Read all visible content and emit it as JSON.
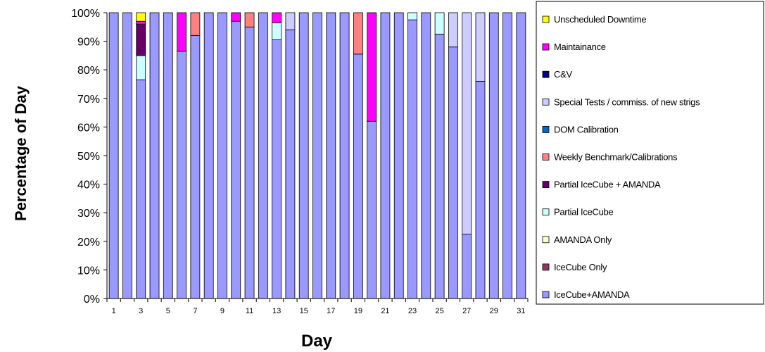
{
  "chart_data": {
    "type": "bar",
    "stacked": true,
    "xlabel": "Day",
    "ylabel": "Percentage of Day",
    "ylim": [
      0,
      100
    ],
    "ytick_step": 10,
    "ytick_format": "percent",
    "grid": false,
    "legend_placement": "right",
    "days": [
      1,
      2,
      3,
      4,
      5,
      6,
      7,
      8,
      9,
      10,
      11,
      12,
      13,
      14,
      15,
      16,
      17,
      18,
      19,
      20,
      21,
      22,
      23,
      24,
      25,
      26,
      27,
      28,
      29,
      30,
      31
    ],
    "x_tick_labels": [
      "1",
      "3",
      "5",
      "7",
      "9",
      "11",
      "13",
      "15",
      "17",
      "19",
      "21",
      "23",
      "25",
      "27",
      "29",
      "31"
    ],
    "series": [
      {
        "name": "IceCube+AMANDA",
        "color": "#9999FF",
        "values": [
          100,
          100,
          76.5,
          100,
          100,
          86.5,
          92,
          100,
          100,
          97,
          95,
          100,
          90.5,
          94,
          100,
          100,
          100,
          100,
          85.5,
          62,
          100,
          100,
          97.5,
          100,
          92.5,
          88,
          22.5,
          76,
          100,
          100,
          100
        ]
      },
      {
        "name": "IceCube Only",
        "color": "#993366",
        "values": [
          0,
          0,
          0,
          0,
          0,
          0,
          0,
          0,
          0,
          0,
          0,
          0,
          0,
          0,
          0,
          0,
          0,
          0,
          0,
          0,
          0,
          0,
          0,
          0,
          0,
          0,
          0,
          0,
          0,
          0,
          0
        ]
      },
      {
        "name": "AMANDA Only",
        "color": "#FFFFCC",
        "values": [
          0,
          0,
          0,
          0,
          0,
          0,
          0,
          0,
          0,
          0,
          0,
          0,
          0,
          0,
          0,
          0,
          0,
          0,
          0,
          0,
          0,
          0,
          0,
          0,
          0,
          0,
          0,
          0,
          0,
          0,
          0
        ]
      },
      {
        "name": "Partial IceCube",
        "color": "#CCFFFF",
        "values": [
          0,
          0,
          8.5,
          0,
          0,
          0,
          0,
          0,
          0,
          0,
          0,
          0,
          6,
          0,
          0,
          0,
          0,
          0,
          0,
          0,
          0,
          0,
          2.5,
          0,
          7.5,
          0,
          0,
          0,
          0,
          0,
          0
        ]
      },
      {
        "name": "Partial IceCube + AMANDA",
        "color": "#660066",
        "values": [
          0,
          0,
          11,
          0,
          0,
          0,
          0,
          0,
          0,
          0,
          0,
          0,
          0,
          0,
          0,
          0,
          0,
          0,
          0,
          0,
          0,
          0,
          0,
          0,
          0,
          0,
          0,
          0,
          0,
          0,
          0
        ]
      },
      {
        "name": "Weekly Benchmark/Calibrations",
        "color": "#FF8080",
        "values": [
          0,
          0,
          0,
          0,
          0,
          0,
          8,
          0,
          0,
          0,
          5,
          0,
          0,
          0,
          0,
          0,
          0,
          0,
          14.5,
          0,
          0,
          0,
          0,
          0,
          0,
          0,
          0,
          0,
          0,
          0,
          0
        ]
      },
      {
        "name": "DOM Calibration",
        "color": "#0066CC",
        "values": [
          0,
          0,
          0,
          0,
          0,
          0,
          0,
          0,
          0,
          0,
          0,
          0,
          0,
          0,
          0,
          0,
          0,
          0,
          0,
          0,
          0,
          0,
          0,
          0,
          0,
          0,
          0,
          0,
          0,
          0,
          0
        ]
      },
      {
        "name": "Special Tests / commiss. of new strigs",
        "color": "#CCCCFF",
        "values": [
          0,
          0,
          0,
          0,
          0,
          0,
          0,
          0,
          0,
          0,
          0,
          0,
          0,
          6,
          0,
          0,
          0,
          0,
          0,
          0,
          0,
          0,
          0,
          0,
          0,
          12,
          77.5,
          24,
          0,
          0,
          0
        ]
      },
      {
        "name": "C&V",
        "color": "#000080",
        "values": [
          0,
          0,
          0,
          0,
          0,
          0,
          0,
          0,
          0,
          0,
          0,
          0,
          0,
          0,
          0,
          0,
          0,
          0,
          0,
          0,
          0,
          0,
          0,
          0,
          0,
          0,
          0,
          0,
          0,
          0,
          0
        ]
      },
      {
        "name": "Maintainance",
        "color": "#FF00FF",
        "values": [
          0,
          0,
          1,
          0,
          0,
          13.5,
          0,
          0,
          0,
          3,
          0,
          0,
          3.5,
          0,
          0,
          0,
          0,
          0,
          0,
          38,
          0,
          0,
          0,
          0,
          0,
          0,
          0,
          0,
          0,
          0,
          0
        ]
      },
      {
        "name": "Unscheduled Downtime",
        "color": "#FFFF00",
        "values": [
          0,
          0,
          3,
          0,
          0,
          0,
          0,
          0,
          0,
          0,
          0,
          0,
          0,
          0,
          0,
          0,
          0,
          0,
          0,
          0,
          0,
          0,
          0,
          0,
          0,
          0,
          0,
          0,
          0,
          0,
          0
        ]
      }
    ]
  }
}
